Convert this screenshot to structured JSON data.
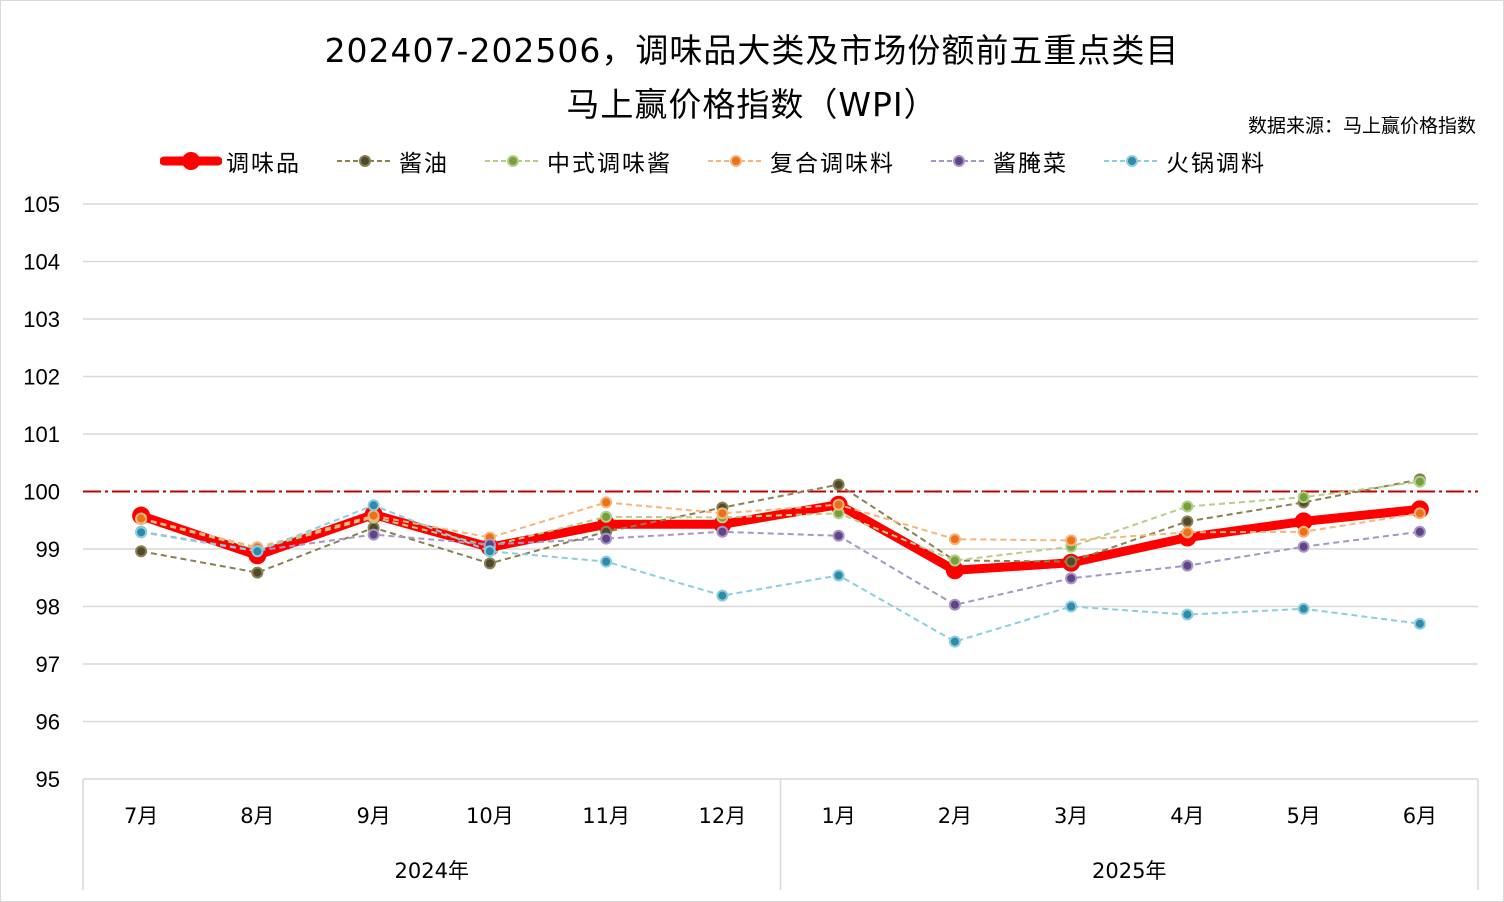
{
  "title": {
    "line1": "202407-202506，调味品大类及市场份额前五重点类目",
    "line2": "马上赢价格指数（WPI）"
  },
  "source": "数据来源：马上赢价格指数",
  "legend": [
    {
      "name": "调味品",
      "color": "#ff0000",
      "style": "solid-thick"
    },
    {
      "name": "酱油",
      "color": "#8b8050",
      "marker": "#4e4a2e",
      "style": "dashed"
    },
    {
      "name": "中式调味酱",
      "color": "#b5cf8a",
      "marker": "#77a03d",
      "style": "dashed"
    },
    {
      "name": "复合调味料",
      "color": "#f7b57c",
      "marker": "#ea7117",
      "style": "dashed"
    },
    {
      "name": "酱腌菜",
      "color": "#a994c6",
      "marker": "#5f4585",
      "style": "dashed"
    },
    {
      "name": "火锅调料",
      "color": "#8ccde0",
      "marker": "#2e8aa6",
      "style": "dashed"
    }
  ],
  "chart_data": {
    "type": "line",
    "title": "202407-202506，调味品大类及市场份额前五重点类目 马上赢价格指数（WPI）",
    "xlabel": "",
    "ylabel": "",
    "ylim": [
      95,
      105
    ],
    "yticks": [
      105,
      104,
      103,
      102,
      101,
      100,
      99,
      98,
      97,
      96,
      95
    ],
    "grid": true,
    "legend_position": "top",
    "reference_line": {
      "value": 100,
      "color": "#c00000",
      "style": "dash-dot"
    },
    "categories": [
      "7月",
      "8月",
      "9月",
      "10月",
      "11月",
      "12月",
      "1月",
      "2月",
      "3月",
      "4月",
      "5月",
      "6月"
    ],
    "category_groups": [
      {
        "label": "2024年",
        "span": 6
      },
      {
        "label": "2025年",
        "span": 6
      }
    ],
    "series": [
      {
        "name": "调味品",
        "values": [
          99.58,
          98.89,
          99.6,
          99.03,
          99.43,
          99.43,
          99.77,
          98.63,
          98.76,
          99.2,
          99.48,
          99.69
        ]
      },
      {
        "name": "酱油",
        "values": [
          98.96,
          98.59,
          99.37,
          98.75,
          99.3,
          99.72,
          100.12,
          98.8,
          98.78,
          99.48,
          99.81,
          100.21
        ]
      },
      {
        "name": "中式调味酱",
        "values": [
          99.52,
          99.0,
          99.55,
          99.05,
          99.56,
          99.55,
          99.62,
          98.8,
          99.04,
          99.74,
          99.9,
          100.17
        ]
      },
      {
        "name": "复合调味料",
        "values": [
          99.53,
          99.03,
          99.58,
          99.2,
          99.81,
          99.62,
          99.77,
          99.17,
          99.15,
          99.29,
          99.3,
          99.62
        ]
      },
      {
        "name": "酱腌菜",
        "values": [
          99.3,
          98.97,
          99.25,
          99.08,
          99.18,
          99.3,
          99.23,
          98.03,
          98.49,
          98.71,
          99.04,
          99.3
        ]
      },
      {
        "name": "火锅调料",
        "values": [
          99.29,
          98.96,
          99.76,
          98.96,
          98.78,
          98.19,
          98.54,
          97.39,
          98.0,
          97.86,
          97.96,
          97.7
        ]
      }
    ]
  }
}
